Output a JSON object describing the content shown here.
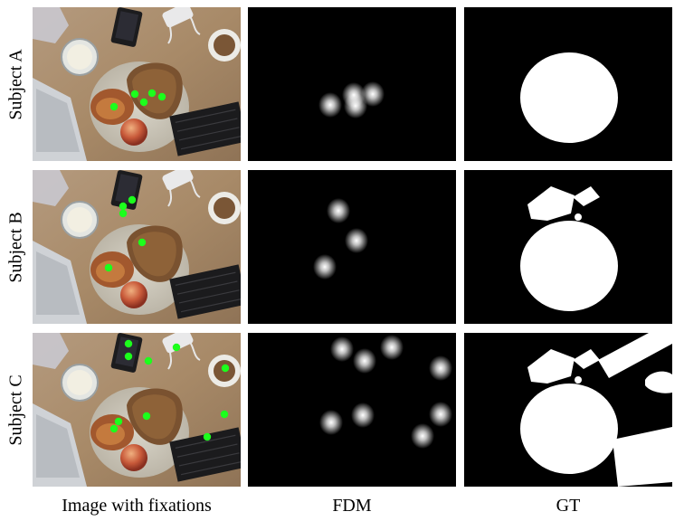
{
  "rows": [
    {
      "label": "Subject A",
      "fixations": [
        [
          126,
          118
        ],
        [
          149,
          104
        ],
        [
          168,
          103
        ],
        [
          179,
          107
        ],
        [
          159,
          113
        ]
      ],
      "fdm_blobs": [
        [
          365,
          116
        ],
        [
          391,
          105
        ],
        [
          412,
          104
        ],
        [
          393,
          117
        ]
      ],
      "gt": "plate"
    },
    {
      "label": "Subject B",
      "fixations": [
        [
          136,
          228
        ],
        [
          146,
          221
        ],
        [
          136,
          236
        ],
        [
          157,
          268
        ],
        [
          120,
          296
        ]
      ],
      "fdm_blobs": [
        [
          374,
          233
        ],
        [
          394,
          266
        ],
        [
          359,
          295
        ]
      ],
      "gt": "plate+phone"
    },
    {
      "label": "Subject C",
      "fixations": [
        [
          142,
          380
        ],
        [
          142,
          394
        ],
        [
          164,
          399
        ],
        [
          195,
          384
        ],
        [
          249,
          407
        ],
        [
          248,
          458
        ],
        [
          229,
          483
        ],
        [
          162,
          460
        ],
        [
          131,
          466
        ],
        [
          126,
          474
        ]
      ],
      "fdm_blobs": [
        [
          378,
          386
        ],
        [
          403,
          399
        ],
        [
          433,
          384
        ],
        [
          487,
          407
        ],
        [
          401,
          459
        ],
        [
          487,
          458
        ],
        [
          467,
          482
        ],
        [
          366,
          467
        ]
      ],
      "gt": "plate+phone+mug+keyboard"
    }
  ],
  "columns": [
    "Image with fixations",
    "FDM",
    "GT"
  ],
  "colors": {
    "fixation": "#1cff1c",
    "background": "#ffffff",
    "mask_bg": "#000000",
    "mask_fg": "#ffffff"
  }
}
